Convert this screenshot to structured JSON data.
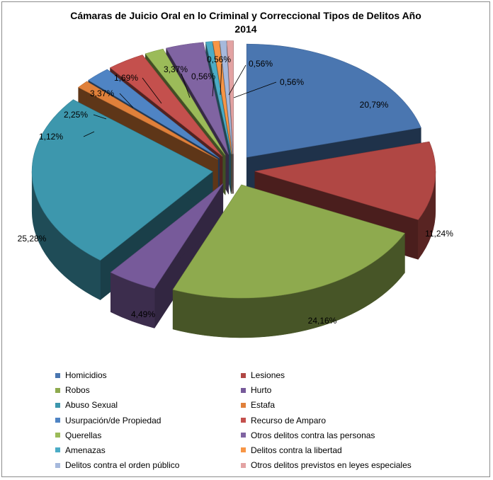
{
  "chart_data": {
    "type": "pie",
    "title_lines": [
      "Cámaras de Juicio Oral en lo Criminal y Correccional Tipos de Delitos Año",
      "2014"
    ],
    "slices": [
      {
        "name": "Homicidios",
        "value": 20.79,
        "label": "20,79%",
        "color": "#4a76b0"
      },
      {
        "name": "Lesiones",
        "value": 11.24,
        "label": "11,24%",
        "color": "#b04744"
      },
      {
        "name": "Robos",
        "value": 24.16,
        "label": "24,16%",
        "color": "#8eaa4e"
      },
      {
        "name": "Hurto",
        "value": 4.49,
        "label": "4,49%",
        "color": "#775a9a"
      },
      {
        "name": "Abuso Sexual",
        "value": 25.28,
        "label": "25,28%",
        "color": "#3d97ad"
      },
      {
        "name": "Estafa",
        "value": 1.12,
        "label": "1,12%",
        "color": "#e0803a"
      },
      {
        "name": "Usurpación/de Propiedad",
        "value": 2.25,
        "label": "2,25%",
        "color": "#4f84c4"
      },
      {
        "name": "Recurso de Amparo",
        "value": 3.37,
        "label": "3,37%",
        "color": "#c4504d"
      },
      {
        "name": "Querellas",
        "value": 1.69,
        "label": "1,69%",
        "color": "#9bbb59"
      },
      {
        "name": "Otros delitos contra las personas",
        "value": 3.37,
        "label": "3,37%",
        "color": "#8064a2"
      },
      {
        "name": "Amenazas",
        "value": 0.56,
        "label": "0,56%",
        "color": "#4bacc6"
      },
      {
        "name": "Delitos contra la libertad",
        "value": 0.56,
        "label": "0,56%",
        "color": "#f79646"
      },
      {
        "name": "Delitos contra el orden público",
        "value": 0.56,
        "label": "0,56%",
        "color": "#a6b9dc"
      },
      {
        "name": "Otros delitos previstos en leyes especiales",
        "value": 0.56,
        "label": "0,56%",
        "color": "#e3a3a3"
      }
    ],
    "legend_position": "bottom"
  }
}
